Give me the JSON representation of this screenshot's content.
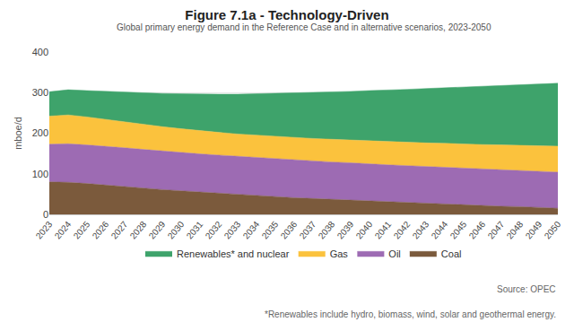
{
  "chart_data": {
    "type": "area",
    "title": "Figure 7.1a - Technology-Driven",
    "subtitle": "Global primary energy demand in the Reference Case and in alternative scenarios, 2023-2050",
    "y_label": "mboe/d",
    "source": "Source: OPEC",
    "footnote": "*Renewables include hydro, biomass, wind, solar and geothermal energy.",
    "x": [
      2023,
      2024,
      2025,
      2026,
      2027,
      2028,
      2029,
      2030,
      2031,
      2032,
      2033,
      2034,
      2035,
      2036,
      2037,
      2038,
      2039,
      2040,
      2041,
      2042,
      2043,
      2044,
      2045,
      2046,
      2047,
      2048,
      2049,
      2050
    ],
    "xlim": [
      2023,
      2050
    ],
    "xticks": [
      2023,
      2024,
      2025,
      2026,
      2027,
      2028,
      2029,
      2030,
      2031,
      2032,
      2033,
      2034,
      2035,
      2036,
      2037,
      2038,
      2039,
      2040,
      2041,
      2042,
      2043,
      2044,
      2045,
      2046,
      2047,
      2048,
      2049,
      2050
    ],
    "ylim": [
      0,
      400
    ],
    "yticks": [
      0,
      100,
      200,
      300,
      400
    ],
    "grid": true,
    "stacked": true,
    "legend": "bottom",
    "series": [
      {
        "name": "Coal",
        "color": "#7b5a3c",
        "values": [
          80,
          79,
          76,
          72,
          68,
          65,
          61,
          58,
          55,
          52,
          49,
          46,
          44,
          41,
          39,
          37,
          35,
          33,
          31,
          29,
          27,
          26,
          24,
          22,
          20,
          19,
          17,
          15
        ]
      },
      {
        "name": "Oil",
        "color": "#9d6bb3",
        "values": [
          93,
          95,
          95,
          96,
          96,
          95,
          95,
          94,
          94,
          94,
          94,
          94,
          93,
          93,
          93,
          92,
          92,
          91,
          91,
          91,
          91,
          90,
          90,
          90,
          90,
          89,
          89,
          89
        ]
      },
      {
        "name": "Gas",
        "color": "#fbc23d",
        "values": [
          69,
          71,
          69,
          66,
          63,
          61,
          60,
          59,
          57,
          56,
          55,
          55,
          55,
          55,
          55,
          56,
          56,
          57,
          57,
          58,
          58,
          59,
          59,
          60,
          61,
          62,
          63,
          64
        ]
      },
      {
        "name": "Renewables* and nuclear",
        "color": "#3ea36b",
        "values": [
          60,
          62,
          65,
          69,
          74,
          78,
          82,
          86,
          90,
          94,
          98,
          102,
          106,
          110,
          113,
          117,
          120,
          124,
          127,
          130,
          134,
          137,
          141,
          144,
          147,
          150,
          152,
          155
        ]
      }
    ]
  }
}
